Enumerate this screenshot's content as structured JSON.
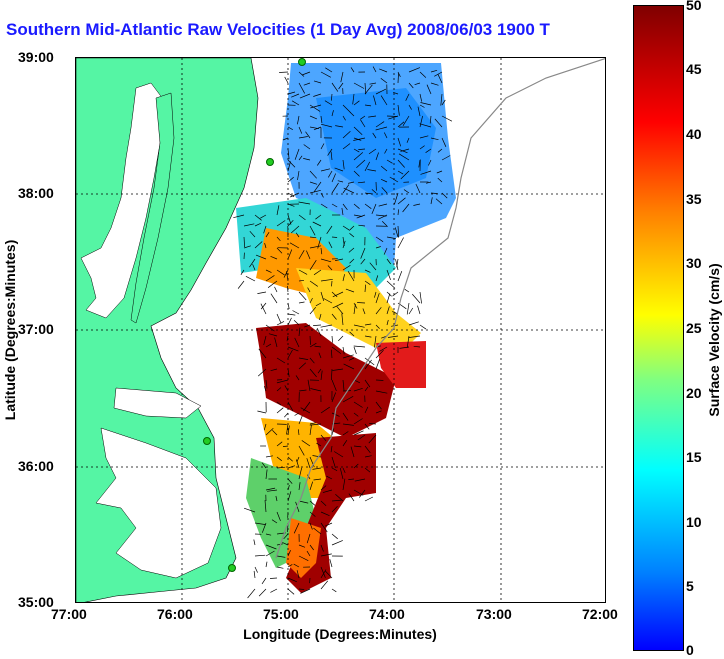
{
  "title": "Southern Mid-Atlantic Raw Velocities (1 Day Avg) 2008/06/03 1900",
  "title_suffix": "T",
  "axes": {
    "xlabel": "Longitude (Degrees:Minutes)",
    "ylabel": "Latitude (Degrees:Minutes)",
    "x_ticks": [
      "77:00",
      "76:00",
      "75:00",
      "74:00",
      "73:00",
      "72:00"
    ],
    "y_ticks": [
      "39:00",
      "38:00",
      "37:00",
      "36:00",
      "35:00"
    ]
  },
  "colorbar": {
    "label": "Surface Velocity (cm/s)",
    "ticks": [
      "50",
      "45",
      "40",
      "35",
      "30",
      "25",
      "20",
      "15",
      "10",
      "5",
      "0"
    ],
    "range": [
      0,
      50
    ]
  },
  "colors": {
    "land": "#55f5a4",
    "title": "#1a1aff",
    "station": "#22cc22"
  }
}
